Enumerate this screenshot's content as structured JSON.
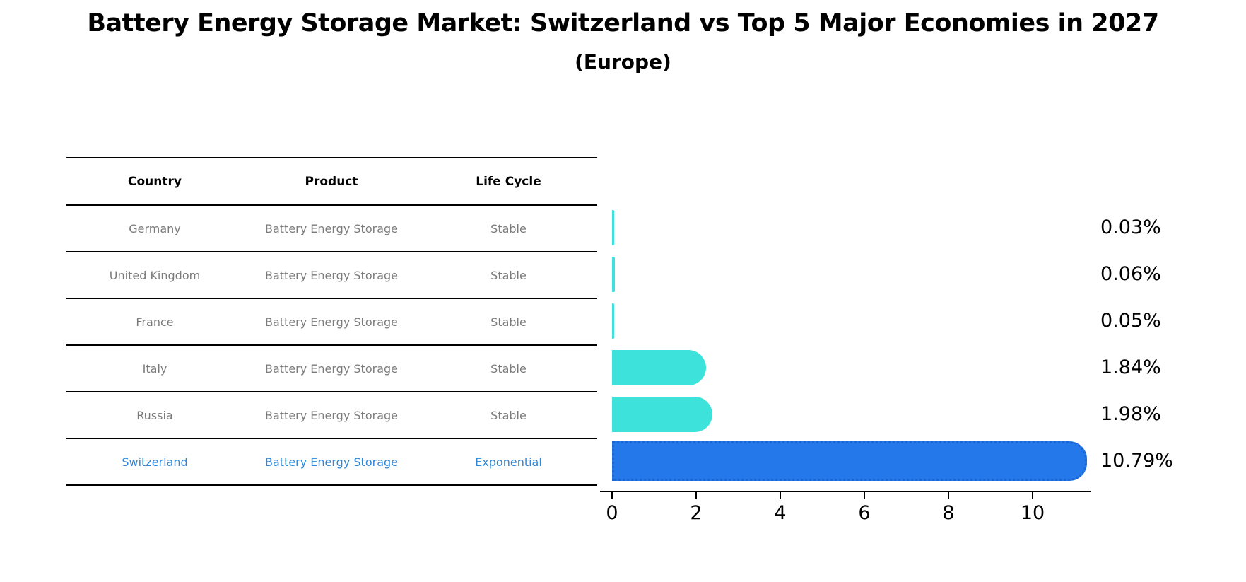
{
  "title": "Battery Energy Storage Market: Switzerland vs Top 5 Major Economies in 2027",
  "subtitle": "(Europe)",
  "table": {
    "headers": [
      "Country",
      "Product",
      "Life Cycle"
    ],
    "rows": [
      {
        "country": "Germany",
        "product": "Battery Energy Storage",
        "life_cycle": "Stable"
      },
      {
        "country": "United Kingdom",
        "product": "Battery Energy Storage",
        "life_cycle": "Stable"
      },
      {
        "country": "France",
        "product": "Battery Energy Storage",
        "life_cycle": "Stable"
      },
      {
        "country": "Italy",
        "product": "Battery Energy Storage",
        "life_cycle": "Stable"
      },
      {
        "country": "Russia",
        "product": "Battery Energy Storage",
        "life_cycle": "Stable"
      },
      {
        "country": "Switzerland",
        "product": "Battery Energy Storage",
        "life_cycle": "Exponential"
      }
    ],
    "highlight_row": 5
  },
  "chart_data": {
    "type": "bar",
    "orientation": "horizontal",
    "title": "Battery Energy Storage Market: Switzerland vs Top 5 Major Economies in 2027 (Europe)",
    "categories": [
      "Germany",
      "United Kingdom",
      "France",
      "Italy",
      "Russia",
      "Switzerland"
    ],
    "values": [
      0.03,
      0.06,
      0.05,
      1.84,
      1.98,
      10.79
    ],
    "value_labels": [
      "0.03%",
      "0.06%",
      "0.05%",
      "1.84%",
      "1.98%",
      "10.79%"
    ],
    "unit": "%",
    "xticks": [
      0,
      2,
      4,
      6,
      8,
      10
    ],
    "xlim": [
      0,
      11.4
    ],
    "grid": false,
    "legend": false,
    "bar_colors": [
      "#3de2da",
      "#3de2da",
      "#3de2da",
      "#3de2da",
      "#3de2da",
      "#2478ea"
    ],
    "highlight_index": 5,
    "highlight_edge_color": "#1b66d2"
  },
  "colors": {
    "background": "#ffffff",
    "table_line": "#000000",
    "table_text": "#7b7b7b",
    "highlight_text": "#2e86d8",
    "bar_cyan": "#3de2da",
    "bar_blue": "#2478ea",
    "axis": "#000000"
  }
}
